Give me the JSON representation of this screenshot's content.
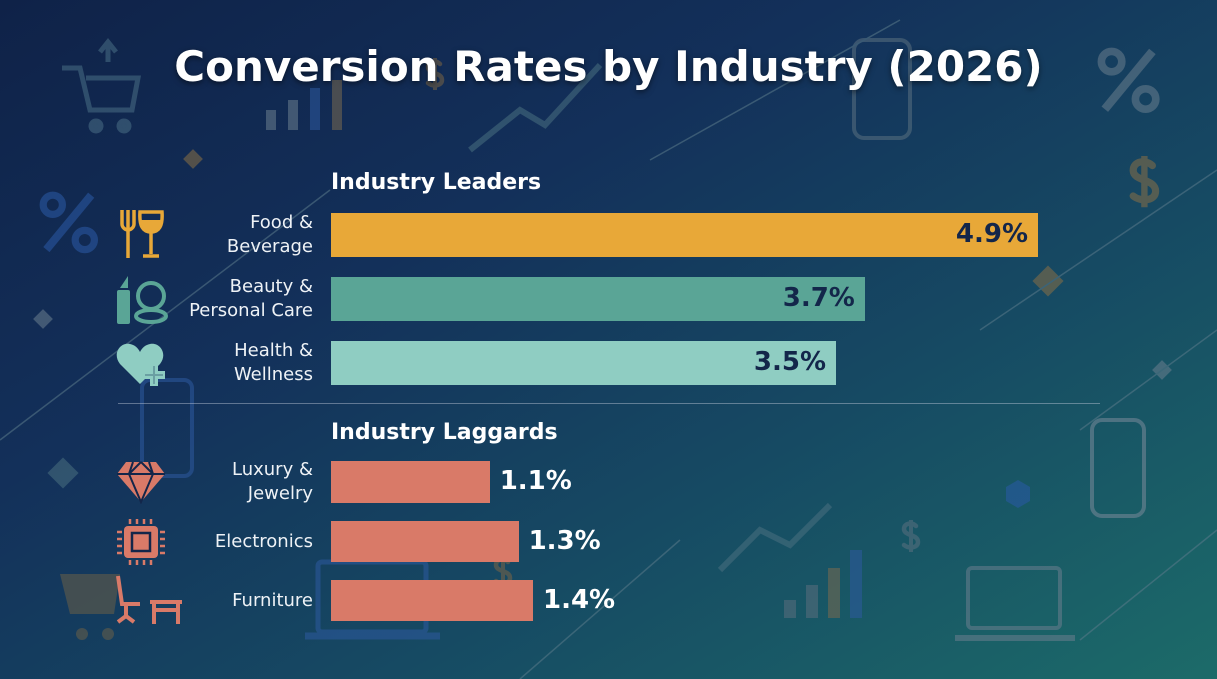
{
  "chart_data": {
    "type": "bar",
    "orientation": "horizontal",
    "title": "Conversion Rates by Industry (2026)",
    "unit": "%",
    "xlim": [
      0,
      4.9
    ],
    "grid": false,
    "groups": [
      {
        "name": "Industry Leaders",
        "categories": [
          "Food & Beverage",
          "Beauty & Personal Care",
          "Health & Wellness"
        ],
        "label_lines": [
          [
            "Food &",
            "Beverage"
          ],
          [
            "Beauty &",
            "Personal Care"
          ],
          [
            "Health &",
            "Wellness"
          ]
        ],
        "values": [
          4.9,
          3.7,
          3.5
        ],
        "value_labels": [
          "4.9%",
          "3.7%",
          "3.5%"
        ],
        "colors": [
          "#e8a838",
          "#5aa596",
          "#8fcdc2"
        ],
        "icons": [
          "fork-wine-glass-icon",
          "lipstick-compact-icon",
          "heart-plus-icon"
        ]
      },
      {
        "name": "Industry Laggards",
        "categories": [
          "Luxury & Jewelry",
          "Electronics",
          "Furniture"
        ],
        "label_lines": [
          [
            "Luxury &",
            "Jewelry"
          ],
          [
            "Electronics"
          ],
          [
            "Furniture"
          ]
        ],
        "values": [
          1.1,
          1.3,
          1.4
        ],
        "value_labels": [
          "1.1%",
          "1.3%",
          "1.4%"
        ],
        "colors": [
          "#d97a68",
          "#d97a68",
          "#d97a68"
        ],
        "icons": [
          "diamond-icon",
          "microchip-icon",
          "chair-desk-icon"
        ]
      }
    ]
  },
  "colors": {
    "value_inside": "#13264a",
    "value_outside": "#ffffff"
  }
}
